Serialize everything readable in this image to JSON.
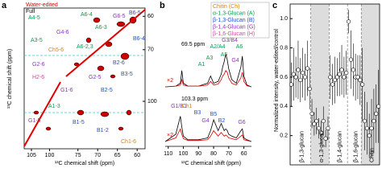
{
  "chart_data": [
    {
      "type": "spectrum2d",
      "panel": "a",
      "legend": [
        {
          "name": "Water-edited",
          "color": "#e00000"
        },
        {
          "name": "Full",
          "color": "#000000"
        }
      ],
      "xlabel": "¹³C chemical shift (ppm)",
      "ylabel": "¹³C chemical shift (ppm)",
      "xlim": [
        107,
        58
      ],
      "xbreak": [
        97,
        78
      ],
      "xticks": [
        105,
        100,
        75,
        70,
        65,
        60
      ],
      "ylim": [
        58,
        107
      ],
      "ybreak": [
        78,
        97
      ],
      "yticks": [
        60,
        70,
        100
      ],
      "annotations": [
        {
          "text": "A6-4",
          "color": "#00a050"
        },
        {
          "text": "A6-3",
          "color": "#00a050"
        },
        {
          "text": "G6-5",
          "color": "#9030c0"
        },
        {
          "text": "B6-5",
          "color": "#2050d0"
        },
        {
          "text": "B6-4",
          "color": "#2050d0"
        },
        {
          "text": "G4-6",
          "color": "#9030c0"
        },
        {
          "text": "A6-2,3",
          "color": "#00a050"
        },
        {
          "text": "Ch5-6",
          "color": "#e08000"
        },
        {
          "text": "B2-6",
          "color": "#2050d0"
        },
        {
          "text": "A4-5",
          "color": "#00a050"
        },
        {
          "text": "A3-5",
          "color": "#00a050"
        },
        {
          "text": "G2-6",
          "color": "#9030c0"
        },
        {
          "text": "H2-6",
          "color": "#e040a0"
        },
        {
          "text": "G2-5",
          "color": "#9030c0"
        },
        {
          "text": "B3-5",
          "color": "#2050d0"
        },
        {
          "text": "B2-5",
          "color": "#2050d0"
        },
        {
          "text": "G1-6",
          "color": "#9030c0"
        },
        {
          "text": "G1-5",
          "color": "#9030c0"
        },
        {
          "text": "B1-5",
          "color": "#2050d0"
        },
        {
          "text": "B1-2",
          "color": "#2050d0"
        },
        {
          "text": "Ch1-6",
          "color": "#e08000"
        },
        {
          "text": "A1-3",
          "color": "#00a050"
        }
      ]
    },
    {
      "type": "line",
      "panel": "b",
      "xlabel": "¹³C chemical shift (ppm)",
      "xlim": [
        112,
        55
      ],
      "xticks": [
        110,
        100,
        90,
        80,
        70,
        60
      ],
      "ylim": [
        0,
        1
      ],
      "legend": [
        {
          "name": "Chitin (Ch)",
          "color": "#e08000"
        },
        {
          "name": "α-1,3-Glucan (A)",
          "color": "#00a050"
        },
        {
          "name": "β-1,3-Glucan (B)",
          "color": "#2050d0"
        },
        {
          "name": "β-1,4-Glucan (G)",
          "color": "#9030c0"
        },
        {
          "name": "β-1,6-Glucan (H)",
          "color": "#e040a0"
        }
      ],
      "x": [
        112,
        105,
        102,
        101,
        100,
        97,
        90,
        84,
        82,
        80,
        77,
        75,
        74,
        73,
        72,
        71,
        70,
        68,
        65,
        62,
        61,
        60,
        58,
        55
      ],
      "spectra": [
        {
          "label": "69.5 ppm",
          "scale_label": "×2",
          "series": [
            {
              "color": "#000000",
              "values": [
                0,
                0.02,
                0.1,
                0.45,
                0.1,
                0.02,
                0.02,
                0.1,
                0.3,
                0.1,
                0.15,
                0.35,
                0.55,
                0.7,
                0.9,
                0.75,
                0.5,
                0.2,
                0.1,
                0.55,
                0.85,
                0.3,
                0.05,
                0
              ]
            },
            {
              "color": "#e00000",
              "values": [
                0,
                0.02,
                0.05,
                0.2,
                0.05,
                0.02,
                0.02,
                0.05,
                0.15,
                0.05,
                0.08,
                0.2,
                0.3,
                0.35,
                0.45,
                0.4,
                0.25,
                0.1,
                0.05,
                0.25,
                0.4,
                0.15,
                0.03,
                0
              ]
            }
          ],
          "peaks": [
            {
              "text": "A1",
              "color": "#00a050"
            },
            {
              "text": "A3",
              "color": "#00a050"
            },
            {
              "text": "A2/A4",
              "color": "#00a050"
            },
            {
              "text": "A5",
              "color": "#00a050"
            },
            {
              "text": "G3/B4",
              "color": "#9030c0"
            },
            {
              "text": "A6",
              "color": "#00a050"
            },
            {
              "text": "G4",
              "color": "#9030c0"
            }
          ]
        },
        {
          "label": "103.3 ppm",
          "scale_label": "×2",
          "series": [
            {
              "color": "#000000",
              "values": [
                0,
                0.2,
                0.7,
                0.4,
                0.15,
                0.05,
                0.05,
                0.1,
                0.3,
                0.6,
                0.3,
                0.5,
                0.4,
                0.3,
                0.35,
                0.3,
                0.2,
                0.15,
                0.1,
                0.3,
                0.35,
                0.1,
                0.05,
                0
              ]
            },
            {
              "color": "#e00000",
              "values": [
                0,
                0.1,
                0.35,
                0.2,
                0.08,
                0.03,
                0.03,
                0.05,
                0.15,
                0.3,
                0.15,
                0.25,
                0.2,
                0.15,
                0.18,
                0.15,
                0.1,
                0.08,
                0.05,
                0.15,
                0.18,
                0.05,
                0.03,
                0
              ]
            }
          ],
          "peaks": [
            {
              "text": "G1/B1",
              "color": "#9030c0"
            },
            {
              "text": "Ch1",
              "color": "#e08000"
            },
            {
              "text": "B3",
              "color": "#2050d0"
            },
            {
              "text": "G4",
              "color": "#9030c0"
            },
            {
              "text": "B5",
              "color": "#2050d0"
            },
            {
              "text": "B2",
              "color": "#2050d0"
            },
            {
              "text": "G6",
              "color": "#9030c0"
            }
          ]
        }
      ]
    },
    {
      "type": "scatter",
      "panel": "c",
      "ylabel": "Normalized intensity, water-edited/control",
      "ylim": [
        0,
        1.1
      ],
      "yticks": [
        0.2,
        0.4,
        0.6,
        {
          "value": 0.8,
          "label": "0.8"
        },
        {
          "value": 1,
          "label": "1.0"
        }
      ],
      "shaded": [
        false,
        true,
        false,
        false,
        true
      ],
      "series": [
        {
          "name": "β-1,3-glucan",
          "values": [
            0.55,
            0.62,
            0.6,
            0.65,
            0.58,
            0.63,
            0.6,
            0.66,
            0.52
          ],
          "errors": [
            0.15,
            0.18,
            0.14,
            0.2,
            0.15,
            0.17,
            0.16,
            0.19,
            0.14
          ]
        },
        {
          "name": "α-1,3-glucan",
          "values": [
            0.35,
            0.28,
            0.3,
            0.25,
            0.22,
            0.3,
            0.18,
            0.25
          ],
          "errors": [
            0.1,
            0.08,
            0.09,
            0.07,
            0.08,
            0.1,
            0.06,
            0.08
          ]
        },
        {
          "name": "β-1,4-glucan",
          "values": [
            0.6,
            0.55,
            0.58,
            0.6,
            0.62,
            0.65,
            0.6,
            0.63
          ],
          "errors": [
            0.15,
            0.14,
            0.16,
            0.13,
            0.15,
            0.17,
            0.14,
            0.15
          ]
        },
        {
          "name": "β-1,6-glucan",
          "values": [
            0.98,
            0.72,
            0.65,
            0.6,
            0.6,
            0.58
          ],
          "errors": [
            0.08,
            0.2,
            0.18,
            0.16,
            0.15,
            0.17
          ]
        },
        {
          "name": "Chitin",
          "values": [
            0.55,
            0.3,
            0.25,
            0.2,
            0.25,
            0.3,
            0.35,
            0.4
          ],
          "errors": [
            0.25,
            0.2,
            0.18,
            0.15,
            0.2,
            0.22,
            0.2,
            0.25
          ]
        }
      ]
    }
  ]
}
